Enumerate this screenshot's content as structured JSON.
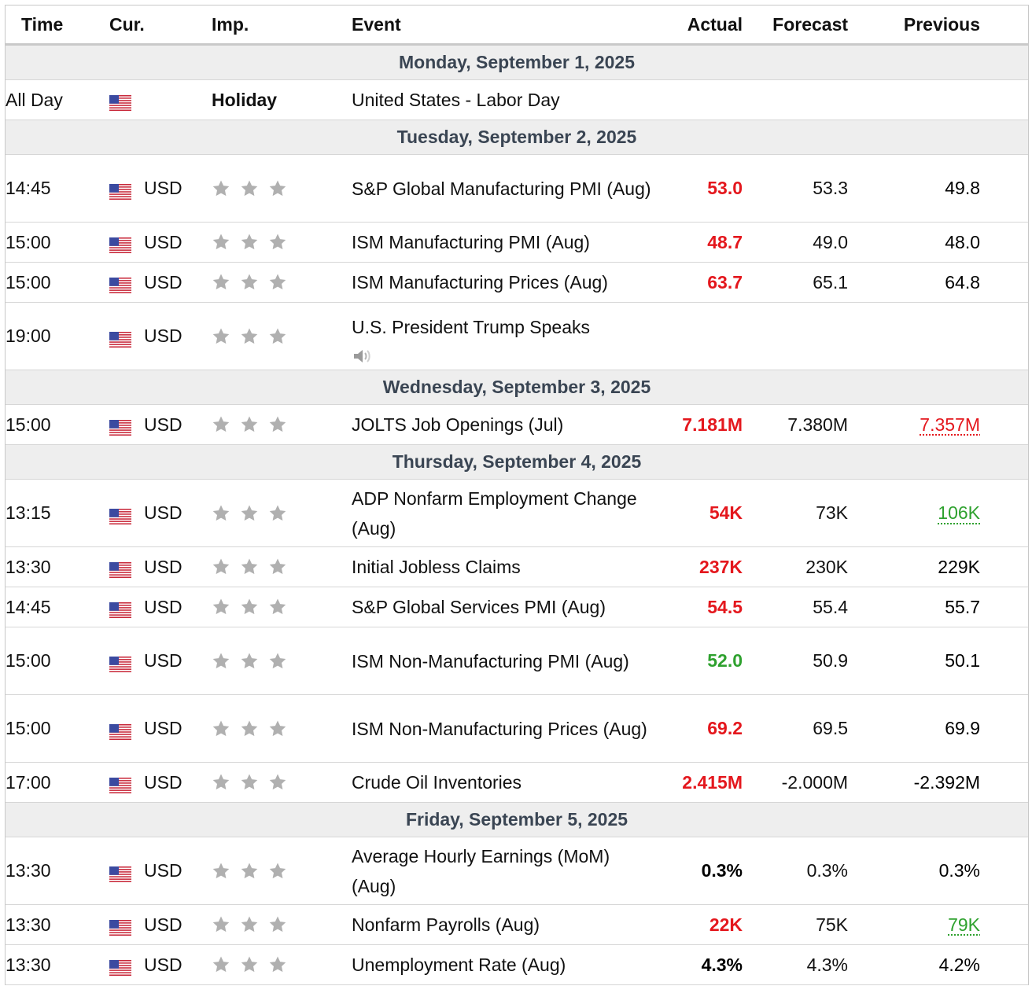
{
  "headers": {
    "time": "Time",
    "cur": "Cur.",
    "imp": "Imp.",
    "event": "Event",
    "actual": "Actual",
    "forecast": "Forecast",
    "previous": "Previous"
  },
  "colors": {
    "red": "#e4171d",
    "green": "#2ea12e",
    "day_bg": "#eeeeee",
    "star": "#b0b0b0"
  },
  "days": [
    {
      "label": "Monday, September 1, 2025",
      "rows": [
        {
          "time": "All Day",
          "flag": "us-flag-icon",
          "currency": "",
          "importance_label": "Holiday",
          "event": "United States - Labor Day",
          "actual": "",
          "actual_color": "black",
          "forecast": "",
          "previous": "",
          "previous_color": "black"
        }
      ]
    },
    {
      "label": "Tuesday, September 2, 2025",
      "rows": [
        {
          "time": "14:45",
          "flag": "us-flag-icon",
          "currency": "USD",
          "event": "S&P Global Manufacturing PMI (Aug)",
          "actual": "53.0",
          "actual_color": "red",
          "forecast": "53.3",
          "previous": "49.8",
          "previous_color": "black",
          "lines": 2
        },
        {
          "time": "15:00",
          "flag": "us-flag-icon",
          "currency": "USD",
          "event": "ISM Manufacturing PMI (Aug)",
          "actual": "48.7",
          "actual_color": "red",
          "forecast": "49.0",
          "previous": "48.0",
          "previous_color": "black",
          "lines": 1
        },
        {
          "time": "15:00",
          "flag": "us-flag-icon",
          "currency": "USD",
          "event": "ISM Manufacturing Prices (Aug)",
          "actual": "63.7",
          "actual_color": "red",
          "forecast": "65.1",
          "previous": "64.8",
          "previous_color": "black",
          "lines": 1
        },
        {
          "time": "19:00",
          "flag": "us-flag-icon",
          "currency": "USD",
          "event": "U.S. President Trump Speaks",
          "actual": "",
          "actual_color": "black",
          "forecast": "",
          "previous": "",
          "previous_color": "black",
          "lines": 2,
          "speaker": true
        }
      ]
    },
    {
      "label": "Wednesday, September 3, 2025",
      "rows": [
        {
          "time": "15:00",
          "flag": "us-flag-icon",
          "currency": "USD",
          "event": "JOLTS Job Openings (Jul)",
          "actual": "7.181M",
          "actual_color": "red",
          "forecast": "7.380M",
          "previous": "7.357M",
          "previous_color": "red",
          "previous_link": true,
          "lines": 1
        }
      ]
    },
    {
      "label": "Thursday, September 4, 2025",
      "rows": [
        {
          "time": "13:15",
          "flag": "us-flag-icon",
          "currency": "USD",
          "event": "ADP Nonfarm Employment Change (Aug)",
          "actual": "54K",
          "actual_color": "red",
          "forecast": "73K",
          "previous": "106K",
          "previous_color": "green",
          "previous_link": true,
          "lines": 2
        },
        {
          "time": "13:30",
          "flag": "us-flag-icon",
          "currency": "USD",
          "event": "Initial Jobless Claims",
          "actual": "237K",
          "actual_color": "red",
          "forecast": "230K",
          "previous": "229K",
          "previous_color": "black",
          "lines": 1
        },
        {
          "time": "14:45",
          "flag": "us-flag-icon",
          "currency": "USD",
          "event": "S&P Global Services PMI (Aug)",
          "actual": "54.5",
          "actual_color": "red",
          "forecast": "55.4",
          "previous": "55.7",
          "previous_color": "black",
          "lines": 1
        },
        {
          "time": "15:00",
          "flag": "us-flag-icon",
          "currency": "USD",
          "event": "ISM Non-Manufacturing PMI (Aug)",
          "actual": "52.0",
          "actual_color": "green",
          "forecast": "50.9",
          "previous": "50.1",
          "previous_color": "black",
          "lines": 2
        },
        {
          "time": "15:00",
          "flag": "us-flag-icon",
          "currency": "USD",
          "event": "ISM Non-Manufacturing Prices (Aug)",
          "actual": "69.2",
          "actual_color": "red",
          "forecast": "69.5",
          "previous": "69.9",
          "previous_color": "black",
          "lines": 2
        },
        {
          "time": "17:00",
          "flag": "us-flag-icon",
          "currency": "USD",
          "event": "Crude Oil Inventories",
          "actual": "2.415M",
          "actual_color": "red",
          "forecast": "-2.000M",
          "previous": "-2.392M",
          "previous_color": "black",
          "lines": 1
        }
      ]
    },
    {
      "label": "Friday, September 5, 2025",
      "rows": [
        {
          "time": "13:30",
          "flag": "us-flag-icon",
          "currency": "USD",
          "event": "Average Hourly Earnings (MoM) (Aug)",
          "actual": "0.3%",
          "actual_color": "black",
          "forecast": "0.3%",
          "previous": "0.3%",
          "previous_color": "black",
          "lines": 2
        },
        {
          "time": "13:30",
          "flag": "us-flag-icon",
          "currency": "USD",
          "event": "Nonfarm Payrolls (Aug)",
          "actual": "22K",
          "actual_color": "red",
          "forecast": "75K",
          "previous": "79K",
          "previous_color": "green",
          "previous_link": true,
          "lines": 1
        },
        {
          "time": "13:30",
          "flag": "us-flag-icon",
          "currency": "USD",
          "event": "Unemployment Rate (Aug)",
          "actual": "4.3%",
          "actual_color": "black",
          "forecast": "4.3%",
          "previous": "4.2%",
          "previous_color": "black",
          "lines": 1
        }
      ]
    }
  ]
}
